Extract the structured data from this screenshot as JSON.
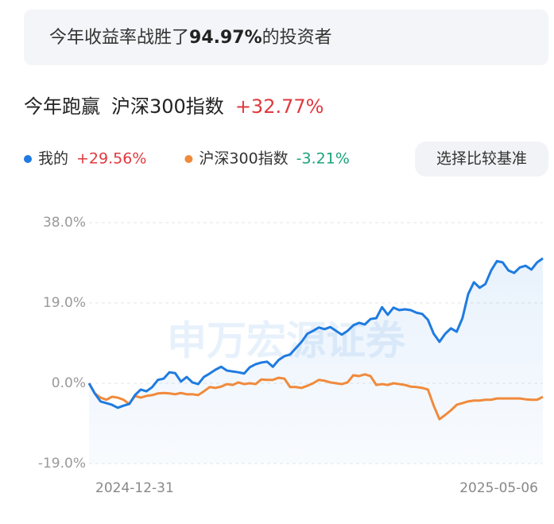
{
  "banner": {
    "prefix": "今年收益率战胜了",
    "percent": "94.97%",
    "suffix": "的投资者"
  },
  "header": {
    "title": "今年跑赢",
    "benchmark": "沪深300指数",
    "excess": "+32.77%"
  },
  "compare_button": "选择比较基准",
  "watermark": "申万宏源证券",
  "chart_data": {
    "type": "line",
    "categories": [
      "2024-12-31",
      null,
      null,
      null,
      null,
      null,
      null,
      null,
      null,
      null,
      null,
      null,
      null,
      null,
      null,
      null,
      null,
      null,
      null,
      null,
      null,
      null,
      null,
      null,
      null,
      null,
      null,
      null,
      null,
      null,
      null,
      null,
      null,
      null,
      null,
      null,
      null,
      null,
      null,
      null,
      null,
      null,
      null,
      null,
      null,
      null,
      null,
      null,
      null,
      null,
      null,
      null,
      null,
      null,
      null,
      null,
      null,
      null,
      null,
      null,
      null,
      null,
      null,
      null,
      null,
      null,
      null,
      null,
      null,
      null,
      null,
      null,
      null,
      null,
      null,
      null,
      null,
      null,
      null,
      "2025-05-06"
    ],
    "series": [
      {
        "name": "我的",
        "legend_value": "+29.56%",
        "color": "#1f7be0",
        "values": [
          0,
          -2.4,
          -4.3,
          -4.7,
          -5.1,
          -5.8,
          -5.3,
          -4.9,
          -2.8,
          -1.5,
          -1.9,
          -0.9,
          0.8,
          1.1,
          2.6,
          2.4,
          0.4,
          1.5,
          0.2,
          -0.2,
          1.5,
          2.3,
          3.2,
          3.9,
          3.0,
          2.8,
          2.6,
          2.3,
          3.8,
          4.5,
          4.9,
          5.1,
          3.9,
          5.5,
          6.4,
          6.8,
          8.3,
          9.8,
          11.7,
          12.4,
          13.2,
          12.8,
          13.3,
          12.4,
          11.5,
          12.4,
          13.7,
          14.3,
          13.9,
          15.2,
          15.4,
          18.0,
          16.2,
          17.9,
          17.3,
          17.5,
          17.3,
          16.7,
          16.4,
          15.0,
          11.7,
          9.8,
          11.7,
          13.0,
          12.2,
          15.4,
          21.1,
          23.9,
          22.6,
          23.5,
          26.7,
          28.9,
          28.6,
          26.7,
          26.1,
          27.4,
          27.8,
          26.9,
          28.6,
          29.56
        ]
      },
      {
        "name": "沪深300指数",
        "legend_value": "-3.21%",
        "color": "#f08a3c",
        "values": [
          0,
          -2.4,
          -3.4,
          -3.9,
          -3.2,
          -3.4,
          -3.9,
          -4.9,
          -3.0,
          -3.4,
          -3.0,
          -2.8,
          -2.4,
          -2.3,
          -2.4,
          -2.6,
          -2.3,
          -2.6,
          -2.6,
          -2.8,
          -1.9,
          -0.9,
          -1.1,
          -0.8,
          -0.2,
          -0.4,
          0.2,
          -0.2,
          0,
          -0.2,
          0.9,
          0.8,
          0.8,
          1.3,
          1.1,
          -0.9,
          -0.9,
          -1.1,
          -0.6,
          0,
          0.8,
          0.6,
          0.2,
          0,
          -0.2,
          0.2,
          1.9,
          1.7,
          2.1,
          1.7,
          -0.4,
          -0.2,
          -0.4,
          0,
          -0.2,
          -0.4,
          -0.8,
          -0.9,
          -1.1,
          -1.5,
          -5.3,
          -8.5,
          -7.5,
          -6.4,
          -5.1,
          -4.7,
          -4.3,
          -4.1,
          -4.1,
          -3.9,
          -3.9,
          -3.6,
          -3.6,
          -3.6,
          -3.6,
          -3.6,
          -3.8,
          -3.9,
          -3.9,
          -3.21
        ]
      }
    ],
    "ylim": [
      -19,
      38
    ],
    "yticks": [
      {
        "value": -19,
        "label": "-19.0%"
      },
      {
        "value": 0,
        "label": "0.0%"
      },
      {
        "value": 19,
        "label": "19.0%"
      },
      {
        "value": 38,
        "label": "38.0%"
      }
    ],
    "grid": true
  }
}
